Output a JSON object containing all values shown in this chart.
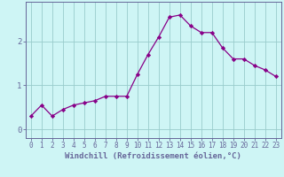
{
  "x": [
    0,
    1,
    2,
    3,
    4,
    5,
    6,
    7,
    8,
    9,
    10,
    11,
    12,
    13,
    14,
    15,
    16,
    17,
    18,
    19,
    20,
    21,
    22,
    23
  ],
  "y": [
    0.3,
    0.55,
    0.3,
    0.45,
    0.55,
    0.6,
    0.65,
    0.75,
    0.75,
    0.75,
    1.25,
    1.7,
    2.1,
    2.55,
    2.6,
    2.35,
    2.2,
    2.2,
    1.85,
    1.6,
    1.6,
    1.45,
    1.35,
    1.2
  ],
  "line_color": "#880088",
  "marker": "D",
  "marker_size": 2.2,
  "background_color": "#cef5f5",
  "grid_color": "#99cccc",
  "xlabel": "Windchill (Refroidissement éolien,°C)",
  "ylabel": "",
  "title": "",
  "xlim": [
    -0.5,
    23.5
  ],
  "ylim": [
    -0.2,
    2.9
  ],
  "yticks": [
    0,
    1,
    2
  ],
  "xticks": [
    0,
    1,
    2,
    3,
    4,
    5,
    6,
    7,
    8,
    9,
    10,
    11,
    12,
    13,
    14,
    15,
    16,
    17,
    18,
    19,
    20,
    21,
    22,
    23
  ],
  "tick_fontsize": 5.5,
  "xlabel_fontsize": 6.5,
  "line_width": 0.9,
  "spine_color": "#666699",
  "axis_bg": "#cef5f5"
}
